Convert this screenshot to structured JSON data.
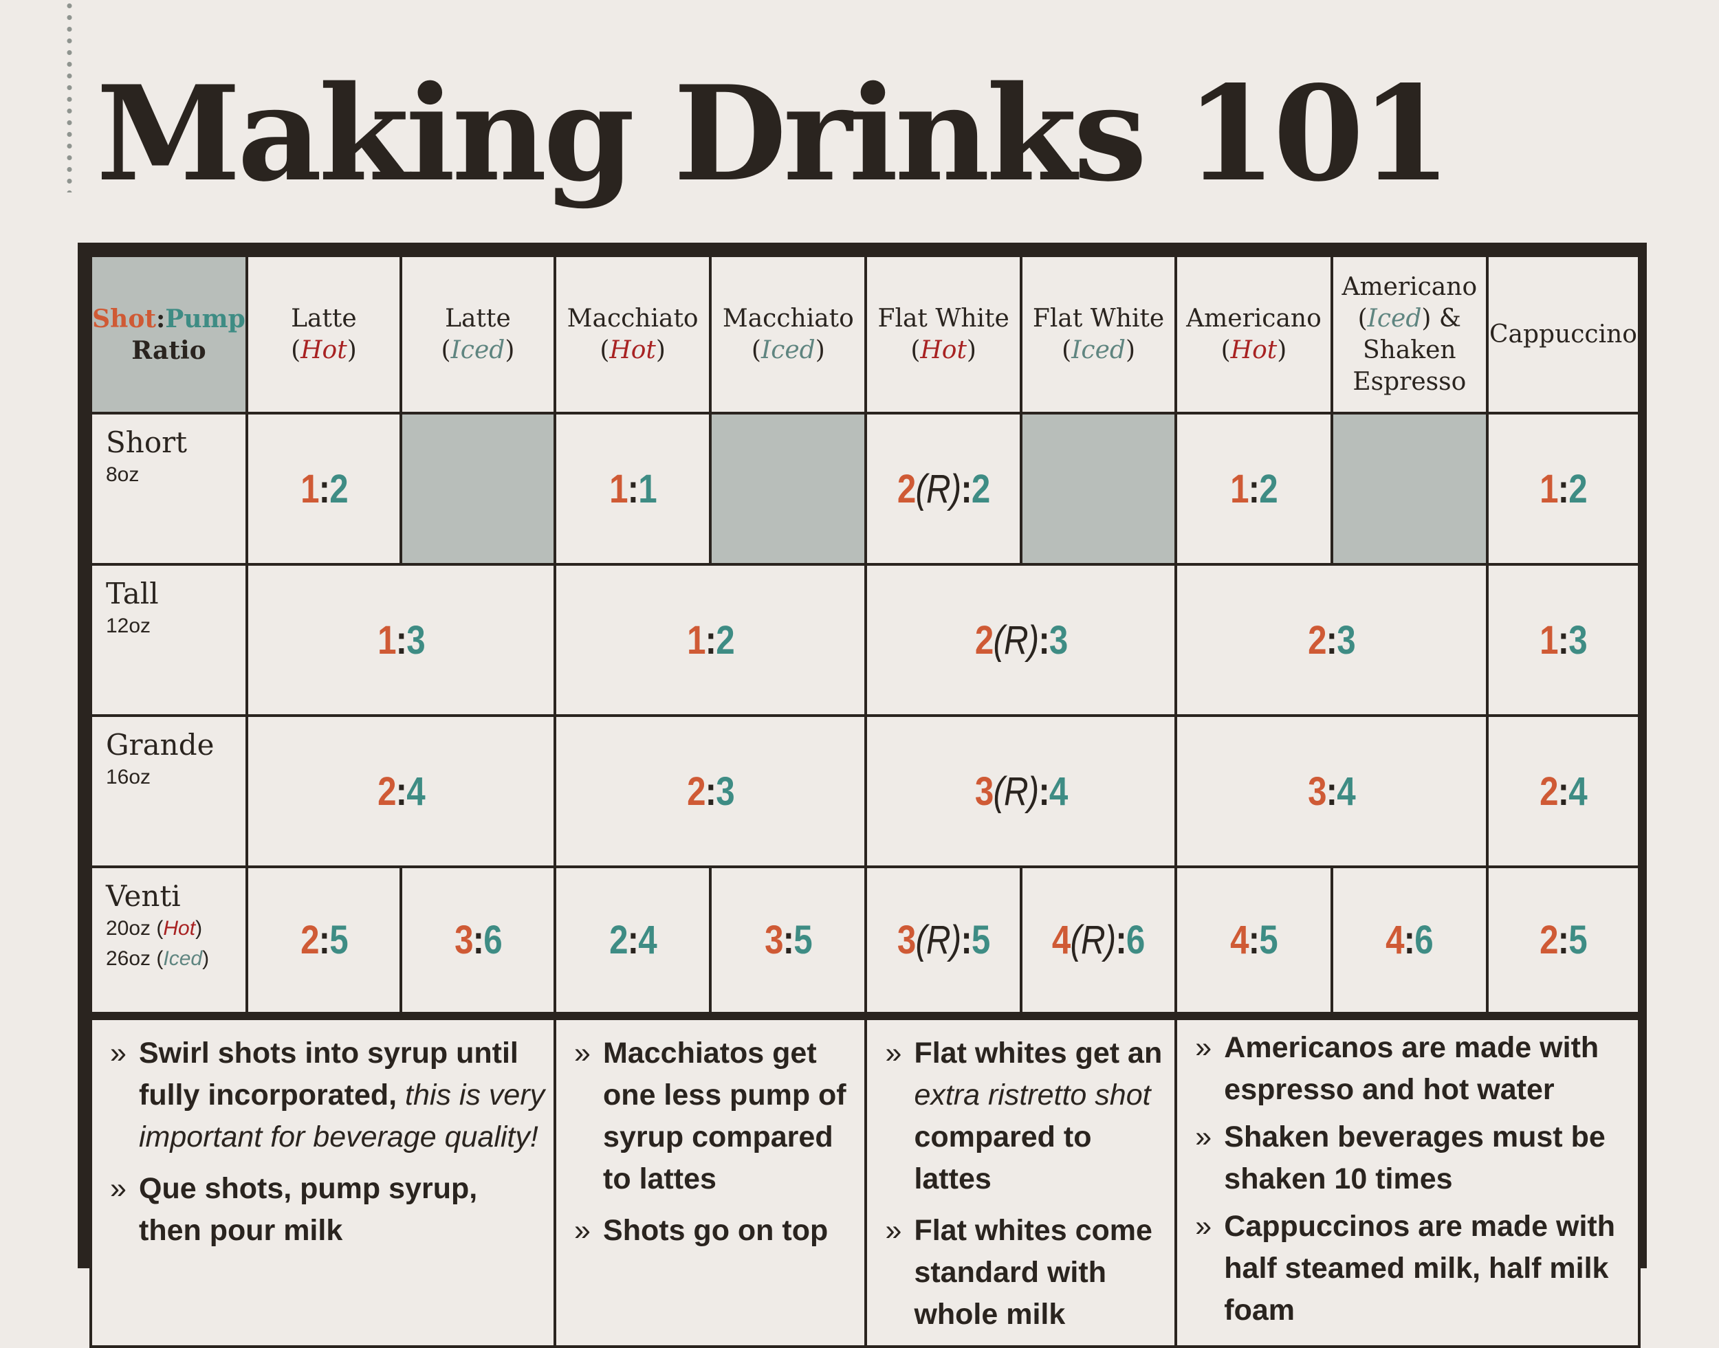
{
  "title": "Making Drinks 101",
  "corner": {
    "shot": "Shot",
    "colon": ":",
    "pump": "Pump",
    "ratio": "Ratio"
  },
  "columns": [
    {
      "name": "Latte",
      "variant": "Hot"
    },
    {
      "name": "Latte",
      "variant": "Iced"
    },
    {
      "name": "Macchiato",
      "variant": "Hot"
    },
    {
      "name": "Macchiato",
      "variant": "Iced"
    },
    {
      "name": "Flat White",
      "variant": "Hot"
    },
    {
      "name": "Flat White",
      "variant": "Iced"
    },
    {
      "name": "Americano",
      "variant": "Hot"
    },
    {
      "name": "Americano",
      "variant": "Iced",
      "suffix": " &",
      "line3": "Shaken",
      "line4": "Espresso"
    },
    {
      "name": "Cappuccino"
    }
  ],
  "sizes": [
    {
      "name": "Short",
      "oz": "8oz"
    },
    {
      "name": "Tall",
      "oz": "12oz"
    },
    {
      "name": "Grande",
      "oz": "16oz"
    },
    {
      "name": "Venti",
      "oz_hot": "20oz",
      "oz_iced": "26oz",
      "hot": "Hot",
      "iced": "Iced"
    }
  ],
  "ratios": {
    "short": {
      "latte_hot": {
        "shot": "1",
        "pump": "2"
      },
      "macchiato_hot": {
        "shot": "1",
        "pump": "1"
      },
      "flatwhite_hot": {
        "shot": "2",
        "r": "(R)",
        "pump": "2"
      },
      "americano_hot": {
        "shot": "1",
        "pump": "2"
      },
      "cappuccino": {
        "shot": "1",
        "pump": "2"
      }
    },
    "tall": {
      "latte": {
        "shot": "1",
        "pump": "3"
      },
      "macchiato": {
        "shot": "1",
        "pump": "2"
      },
      "flatwhite": {
        "shot": "2",
        "r": "(R)",
        "pump": "3"
      },
      "americano": {
        "shot": "2",
        "pump": "3"
      },
      "cappuccino": {
        "shot": "1",
        "pump": "3"
      }
    },
    "grande": {
      "latte": {
        "shot": "2",
        "pump": "4"
      },
      "macchiato": {
        "shot": "2",
        "pump": "3"
      },
      "flatwhite": {
        "shot": "3",
        "r": "(R)",
        "pump": "4"
      },
      "americano": {
        "shot": "3",
        "pump": "4"
      },
      "cappuccino": {
        "shot": "2",
        "pump": "4"
      }
    },
    "venti": {
      "latte_hot": {
        "shot": "2",
        "pump": "5"
      },
      "latte_iced": {
        "shot": "3",
        "pump": "6"
      },
      "macchiato_hot": {
        "shot": "2",
        "pump": "4"
      },
      "macchiato_iced": {
        "shot": "3",
        "pump": "5"
      },
      "flatwhite_hot": {
        "shot": "3",
        "r": "(R)",
        "pump": "5"
      },
      "flatwhite_iced": {
        "shot": "4",
        "r": "(R)",
        "pump": "6"
      },
      "americano_hot": {
        "shot": "4",
        "pump": "5"
      },
      "americano_iced": {
        "shot": "4",
        "pump": "6"
      },
      "cappuccino": {
        "shot": "2",
        "pump": "5"
      }
    }
  },
  "notes": {
    "bullet": "»",
    "latte": [
      {
        "bold": "Swirl shots into syrup until fully incorporated,",
        "italic": " this is very important for beverage quality!"
      },
      {
        "bold": "Que shots, pump syrup, then pour milk"
      }
    ],
    "macchiato": [
      {
        "bold": "Macchiatos get one less pump of syrup compared to lattes"
      },
      {
        "bold": "Shots go on top"
      }
    ],
    "flatwhite": [
      {
        "bold": "Flat whites get an",
        "italic": "extra ristretto shot",
        "bold2": "compared to lattes"
      },
      {
        "bold": "Flat whites come standard with whole milk"
      }
    ],
    "americano": [
      {
        "bold": "Americanos are made with espresso and hot water"
      },
      {
        "bold": "Shaken beverages must be shaken 10 times"
      },
      {
        "bold": "Cappuccinos are made with half steamed milk, half milk foam"
      }
    ]
  },
  "colors": {
    "shot": "#cf5a35",
    "pump": "#3e8c84",
    "hot": "#a82222",
    "iced": "#5f8580",
    "ink": "#2a241f",
    "background": "#efebe7",
    "shaded": "#b8beba"
  }
}
